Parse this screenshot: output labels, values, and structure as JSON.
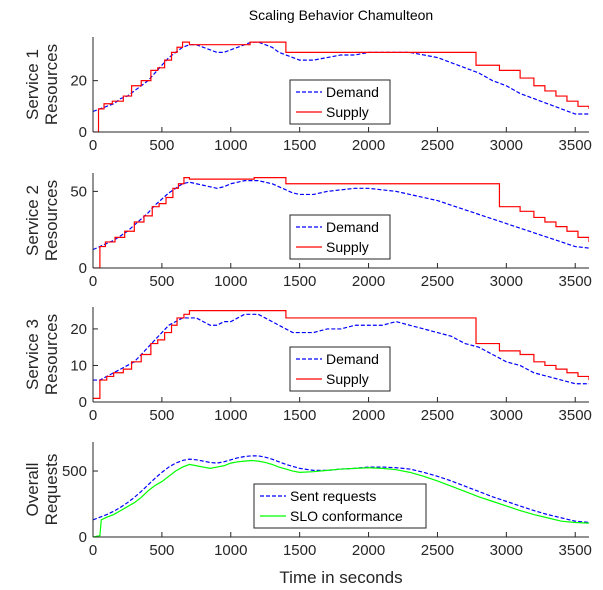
{
  "chart_data": {
    "type": "line",
    "title": "Scaling Behavior Chamulteon",
    "xlabel": "Time in seconds",
    "xlim": [
      0,
      3600
    ],
    "xticks": [
      0,
      500,
      1000,
      1500,
      2000,
      2500,
      3000,
      3500
    ],
    "colors": {
      "demand": "#0000ff",
      "supply": "#ff0000",
      "sent": "#0000ff",
      "slo": "#00ff00"
    },
    "panels": [
      {
        "ylabel": [
          "Service 1",
          "Resources"
        ],
        "ylim": [
          0,
          37
        ],
        "yticks": [
          0,
          20
        ],
        "legend_position": "center",
        "series": [
          {
            "name": "Demand",
            "style": "dashed",
            "color": "#0000ff",
            "x": [
              0,
              50,
              100,
              150,
              200,
              250,
              300,
              350,
              400,
              450,
              500,
              550,
              600,
              650,
              700,
              750,
              800,
              850,
              900,
              950,
              1000,
              1050,
              1100,
              1150,
              1200,
              1250,
              1300,
              1350,
              1400,
              1450,
              1500,
              1600,
              1700,
              1800,
              1900,
              2000,
              2100,
              2200,
              2300,
              2400,
              2500,
              2600,
              2700,
              2800,
              2900,
              3000,
              3100,
              3200,
              3300,
              3400,
              3500,
              3600
            ],
            "y": [
              8,
              9,
              10,
              11,
              13,
              14,
              16,
              18,
              20,
              23,
              26,
              29,
              31,
              33,
              34,
              34,
              33,
              32,
              31,
              31,
              32,
              33,
              34,
              35,
              35,
              34,
              33,
              31,
              30,
              29,
              28,
              28,
              29,
              30,
              30,
              31,
              31,
              31,
              31,
              30,
              29,
              27,
              25,
              23,
              20,
              18,
              15,
              13,
              11,
              9,
              7,
              7
            ]
          },
          {
            "name": "Supply",
            "style": "solid",
            "step": true,
            "color": "#ff0000",
            "x": [
              0,
              40,
              80,
              140,
              220,
              280,
              350,
              420,
              470,
              520,
              570,
              610,
              650,
              700,
              1140,
              1400,
              2780,
              2950,
              3100,
              3200,
              3280,
              3360,
              3440,
              3520,
              3600
            ],
            "y": [
              0,
              9,
              11,
              12,
              14,
              18,
              20,
              24,
              25,
              28,
              31,
              33,
              35,
              34,
              35,
              31,
              26,
              24,
              21,
              18,
              16,
              14,
              12,
              10,
              9
            ]
          }
        ]
      },
      {
        "ylabel": [
          "Service 2",
          "Resources"
        ],
        "ylim": [
          0,
          62
        ],
        "yticks": [
          0,
          50
        ],
        "legend_position": "center",
        "series": [
          {
            "name": "Demand",
            "style": "dashed",
            "color": "#0000ff",
            "x": [
              0,
              50,
              100,
              150,
              200,
              250,
              300,
              350,
              400,
              450,
              500,
              550,
              600,
              650,
              700,
              750,
              800,
              850,
              900,
              950,
              1000,
              1050,
              1100,
              1150,
              1200,
              1250,
              1300,
              1350,
              1400,
              1450,
              1500,
              1600,
              1700,
              1800,
              1900,
              2000,
              2100,
              2200,
              2300,
              2400,
              2500,
              2600,
              2700,
              2800,
              2900,
              3000,
              3100,
              3200,
              3300,
              3400,
              3500,
              3600
            ],
            "y": [
              12,
              14,
              16,
              18,
              21,
              24,
              28,
              32,
              36,
              41,
              45,
              49,
              52,
              55,
              56,
              55,
              54,
              53,
              52,
              53,
              55,
              56,
              57,
              57,
              57,
              56,
              55,
              53,
              51,
              49,
              48,
              48,
              50,
              51,
              52,
              52,
              51,
              50,
              48,
              46,
              44,
              41,
              38,
              35,
              32,
              29,
              26,
              23,
              20,
              17,
              14,
              13
            ]
          },
          {
            "name": "Supply",
            "style": "solid",
            "step": true,
            "color": "#ff0000",
            "x": [
              0,
              50,
              90,
              160,
              230,
              300,
              370,
              430,
              480,
              530,
              580,
              620,
              660,
              700,
              1170,
              1400,
              2780,
              2950,
              3100,
              3200,
              3280,
              3360,
              3440,
              3520,
              3600
            ],
            "y": [
              0,
              14,
              17,
              20,
              24,
              30,
              34,
              40,
              42,
              46,
              52,
              55,
              59,
              58,
              59,
              55,
              55,
              40,
              37,
              33,
              30,
              27,
              24,
              20,
              17
            ]
          }
        ]
      },
      {
        "ylabel": [
          "Service 3",
          "Resources"
        ],
        "ylim": [
          0,
          26
        ],
        "yticks": [
          0,
          10,
          20
        ],
        "legend_position": "center",
        "series": [
          {
            "name": "Demand",
            "style": "dashed",
            "color": "#0000ff",
            "x": [
              0,
              50,
              100,
              150,
              200,
              250,
              300,
              350,
              400,
              450,
              500,
              550,
              600,
              650,
              700,
              750,
              800,
              850,
              900,
              950,
              1000,
              1050,
              1100,
              1150,
              1200,
              1250,
              1300,
              1350,
              1400,
              1450,
              1500,
              1600,
              1700,
              1800,
              1900,
              2000,
              2100,
              2200,
              2300,
              2400,
              2500,
              2600,
              2700,
              2800,
              2900,
              3000,
              3100,
              3200,
              3300,
              3400,
              3500,
              3600
            ],
            "y": [
              6,
              6,
              7,
              8,
              9,
              10,
              11,
              13,
              15,
              17,
              19,
              21,
              22,
              23,
              23,
              23,
              22,
              21,
              21,
              22,
              22,
              23,
              24,
              24,
              24,
              23,
              22,
              21,
              20,
              19,
              19,
              19,
              20,
              20,
              21,
              21,
              21,
              22,
              21,
              20,
              19,
              18,
              16,
              15,
              13,
              11,
              10,
              8,
              7,
              6,
              5,
              5
            ]
          },
          {
            "name": "Supply",
            "style": "solid",
            "step": true,
            "color": "#ff0000",
            "x": [
              0,
              50,
              100,
              150,
              220,
              280,
              350,
              420,
              470,
              520,
              570,
              610,
              660,
              700,
              1400,
              2780,
              2950,
              3100,
              3200,
              3280,
              3360,
              3440,
              3520,
              3600
            ],
            "y": [
              1,
              6,
              7,
              8,
              9,
              11,
              13,
              16,
              17,
              19,
              21,
              23,
              24,
              25,
              23,
              16,
              14,
              13,
              11,
              10,
              9,
              8,
              7,
              6
            ]
          }
        ]
      },
      {
        "ylabel": [
          "Overall",
          "Requests"
        ],
        "ylim": [
          0,
          720
        ],
        "yticks": [
          0,
          500
        ],
        "legend_position": "center",
        "series": [
          {
            "name": "Sent requests",
            "style": "dashed",
            "color": "#0000ff",
            "x": [
              0,
              50,
              100,
              150,
              200,
              250,
              300,
              350,
              400,
              450,
              500,
              550,
              600,
              650,
              700,
              750,
              800,
              850,
              900,
              950,
              1000,
              1050,
              1100,
              1150,
              1200,
              1250,
              1300,
              1350,
              1400,
              1450,
              1500,
              1600,
              1700,
              1800,
              1900,
              2000,
              2100,
              2200,
              2300,
              2400,
              2500,
              2600,
              2700,
              2800,
              2900,
              3000,
              3100,
              3200,
              3300,
              3400,
              3500,
              3600
            ],
            "y": [
              130,
              150,
              170,
              195,
              225,
              260,
              300,
              345,
              395,
              445,
              490,
              530,
              560,
              580,
              590,
              585,
              575,
              565,
              560,
              570,
              585,
              600,
              610,
              615,
              615,
              605,
              590,
              570,
              550,
              535,
              520,
              505,
              505,
              515,
              520,
              530,
              530,
              525,
              515,
              490,
              460,
              425,
              385,
              345,
              305,
              270,
              235,
              200,
              170,
              145,
              120,
              110
            ]
          },
          {
            "name": "SLO conformance",
            "style": "solid",
            "color": "#00ff00",
            "x": [
              0,
              50,
              60,
              100,
              150,
              200,
              250,
              300,
              350,
              400,
              450,
              500,
              550,
              600,
              650,
              700,
              750,
              800,
              850,
              900,
              950,
              1000,
              1050,
              1100,
              1150,
              1200,
              1250,
              1300,
              1350,
              1400,
              1450,
              1500,
              1600,
              1700,
              1800,
              1900,
              2000,
              2100,
              2200,
              2300,
              2400,
              2500,
              2600,
              2700,
              2800,
              2900,
              3000,
              3100,
              3200,
              3300,
              3400,
              3500,
              3600
            ],
            "y": [
              0,
              10,
              130,
              150,
              170,
              200,
              230,
              260,
              300,
              350,
              390,
              420,
              460,
              500,
              530,
              550,
              540,
              530,
              520,
              530,
              540,
              560,
              570,
              575,
              580,
              575,
              565,
              550,
              530,
              515,
              500,
              490,
              495,
              505,
              515,
              520,
              525,
              520,
              510,
              490,
              460,
              425,
              385,
              345,
              305,
              270,
              235,
              200,
              170,
              145,
              120,
              110,
              105
            ]
          }
        ]
      }
    ]
  }
}
